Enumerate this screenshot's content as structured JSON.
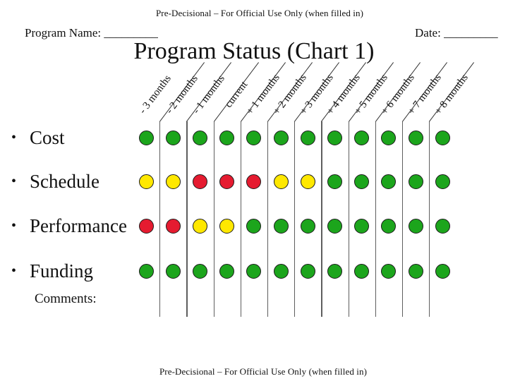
{
  "banner": {
    "top": "Pre-Decisional – For Official Use Only (when filled in)",
    "bottom": "Pre-Decisional – For Official Use Only (when filled in)"
  },
  "header": {
    "program_name": "Program Name: _________",
    "date": "Date: _________",
    "title": "Program Status (Chart 1)"
  },
  "columns": [
    "- 3 months",
    "- 2 months",
    "- 1 months",
    "current",
    "+ 1 months",
    "+ 2 months",
    "+ 3 months",
    "+ 4 months",
    "+ 5 months",
    "+ 6 months",
    "+ 7 months",
    "+ 8 months"
  ],
  "rows": [
    {
      "label": "Cost",
      "statuses": [
        "green",
        "green",
        "green",
        "green",
        "green",
        "green",
        "green",
        "green",
        "green",
        "green",
        "green",
        "green"
      ]
    },
    {
      "label": "Schedule",
      "statuses": [
        "yellow",
        "yellow",
        "red",
        "red",
        "red",
        "yellow",
        "yellow",
        "green",
        "green",
        "green",
        "green",
        "green"
      ]
    },
    {
      "label": "Performance",
      "statuses": [
        "red",
        "red",
        "yellow",
        "yellow",
        "green",
        "green",
        "green",
        "green",
        "green",
        "green",
        "green",
        "green"
      ]
    },
    {
      "label": "Funding",
      "statuses": [
        "green",
        "green",
        "green",
        "green",
        "green",
        "green",
        "green",
        "green",
        "green",
        "green",
        "green",
        "green"
      ]
    }
  ],
  "bullet_glyph": "•",
  "comments_label": "Comments:",
  "status_colors": {
    "green": "#1ca51c",
    "yellow": "#ffe800",
    "red": "#e51b30"
  }
}
